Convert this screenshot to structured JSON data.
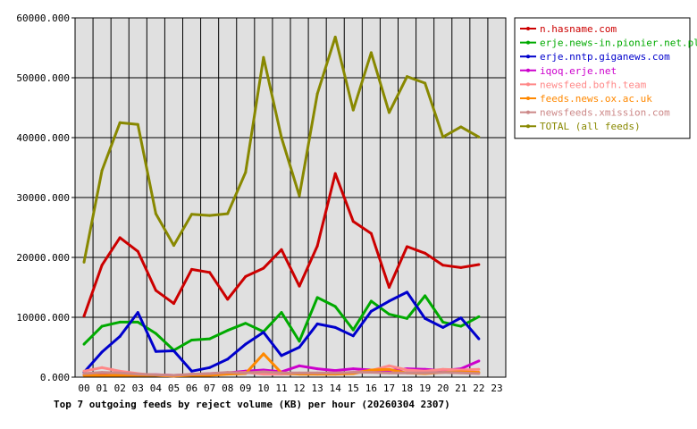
{
  "chart_data": {
    "type": "line",
    "title": "Top 7 outgoing feeds by reject volume (KB) per hour (20260304 2307)",
    "xlabel": "",
    "ylabel": "",
    "x": [
      "00",
      "01",
      "02",
      "03",
      "04",
      "05",
      "06",
      "07",
      "08",
      "09",
      "10",
      "11",
      "12",
      "13",
      "14",
      "15",
      "16",
      "17",
      "18",
      "19",
      "20",
      "21",
      "22",
      "23"
    ],
    "ylim": [
      0,
      60000
    ],
    "yticks": [
      "0.000",
      "10000.000",
      "20000.000",
      "30000.000",
      "40000.000",
      "50000.000",
      "60000.000"
    ],
    "grid": true,
    "legend_position": "top-right",
    "series": [
      {
        "name": "n.hasname.com",
        "color": "#cc0000",
        "values": [
          10200,
          18700,
          23300,
          21000,
          14500,
          12300,
          18000,
          17500,
          13000,
          16800,
          18200,
          21300,
          15200,
          21900,
          34000,
          26000,
          24000,
          15000,
          21800,
          20700,
          18700,
          18300,
          18800,
          null
        ]
      },
      {
        "name": "erje.news-in.pionier.net.pl",
        "color": "#00aa00",
        "values": [
          5500,
          8500,
          9200,
          9200,
          7300,
          4500,
          6200,
          6400,
          7800,
          9000,
          7600,
          10800,
          6000,
          13300,
          11800,
          7900,
          12700,
          10500,
          9800,
          13600,
          9200,
          8500,
          10100,
          null
        ]
      },
      {
        "name": "erje.nntp.giganews.com",
        "color": "#0000cc",
        "values": [
          800,
          4200,
          6800,
          10800,
          4300,
          4400,
          1000,
          1600,
          3000,
          5500,
          7500,
          3600,
          5000,
          8900,
          8300,
          6900,
          11000,
          12700,
          14200,
          9800,
          8300,
          9900,
          6400,
          null
        ]
      },
      {
        "name": "iqoq.erje.net",
        "color": "#cc00cc",
        "values": [
          400,
          400,
          500,
          400,
          400,
          300,
          400,
          600,
          700,
          1000,
          1200,
          900,
          1900,
          1400,
          1100,
          1400,
          1200,
          1100,
          1400,
          1300,
          1100,
          1400,
          2700,
          null
        ]
      },
      {
        "name": "newsfeed.bofh.team",
        "color": "#ff8888",
        "values": [
          1000,
          1600,
          1000,
          600,
          300,
          200,
          500,
          500,
          700,
          800,
          500,
          500,
          600,
          500,
          600,
          800,
          1100,
          1900,
          1200,
          1000,
          1300,
          1200,
          1300,
          null
        ]
      },
      {
        "name": "feeds.news.ox.ac.uk",
        "color": "#ff8800",
        "values": [
          300,
          300,
          300,
          300,
          300,
          200,
          300,
          300,
          500,
          600,
          3900,
          700,
          500,
          500,
          500,
          600,
          1200,
          1300,
          700,
          600,
          800,
          900,
          800,
          null
        ]
      },
      {
        "name": "newsfeeds.xmission.com",
        "color": "#cc8888",
        "values": [
          600,
          800,
          700,
          500,
          400,
          300,
          500,
          600,
          800,
          700,
          900,
          700,
          700,
          700,
          700,
          800,
          800,
          700,
          700,
          700,
          800,
          700,
          600,
          null
        ]
      },
      {
        "name": "TOTAL (all feeds)",
        "color": "#888800",
        "values": [
          19200,
          34500,
          42500,
          42200,
          27300,
          22000,
          27200,
          27000,
          27300,
          34200,
          53400,
          40000,
          30300,
          47300,
          56800,
          44600,
          54200,
          44200,
          50200,
          49100,
          40100,
          41800,
          40100,
          null
        ]
      }
    ]
  }
}
